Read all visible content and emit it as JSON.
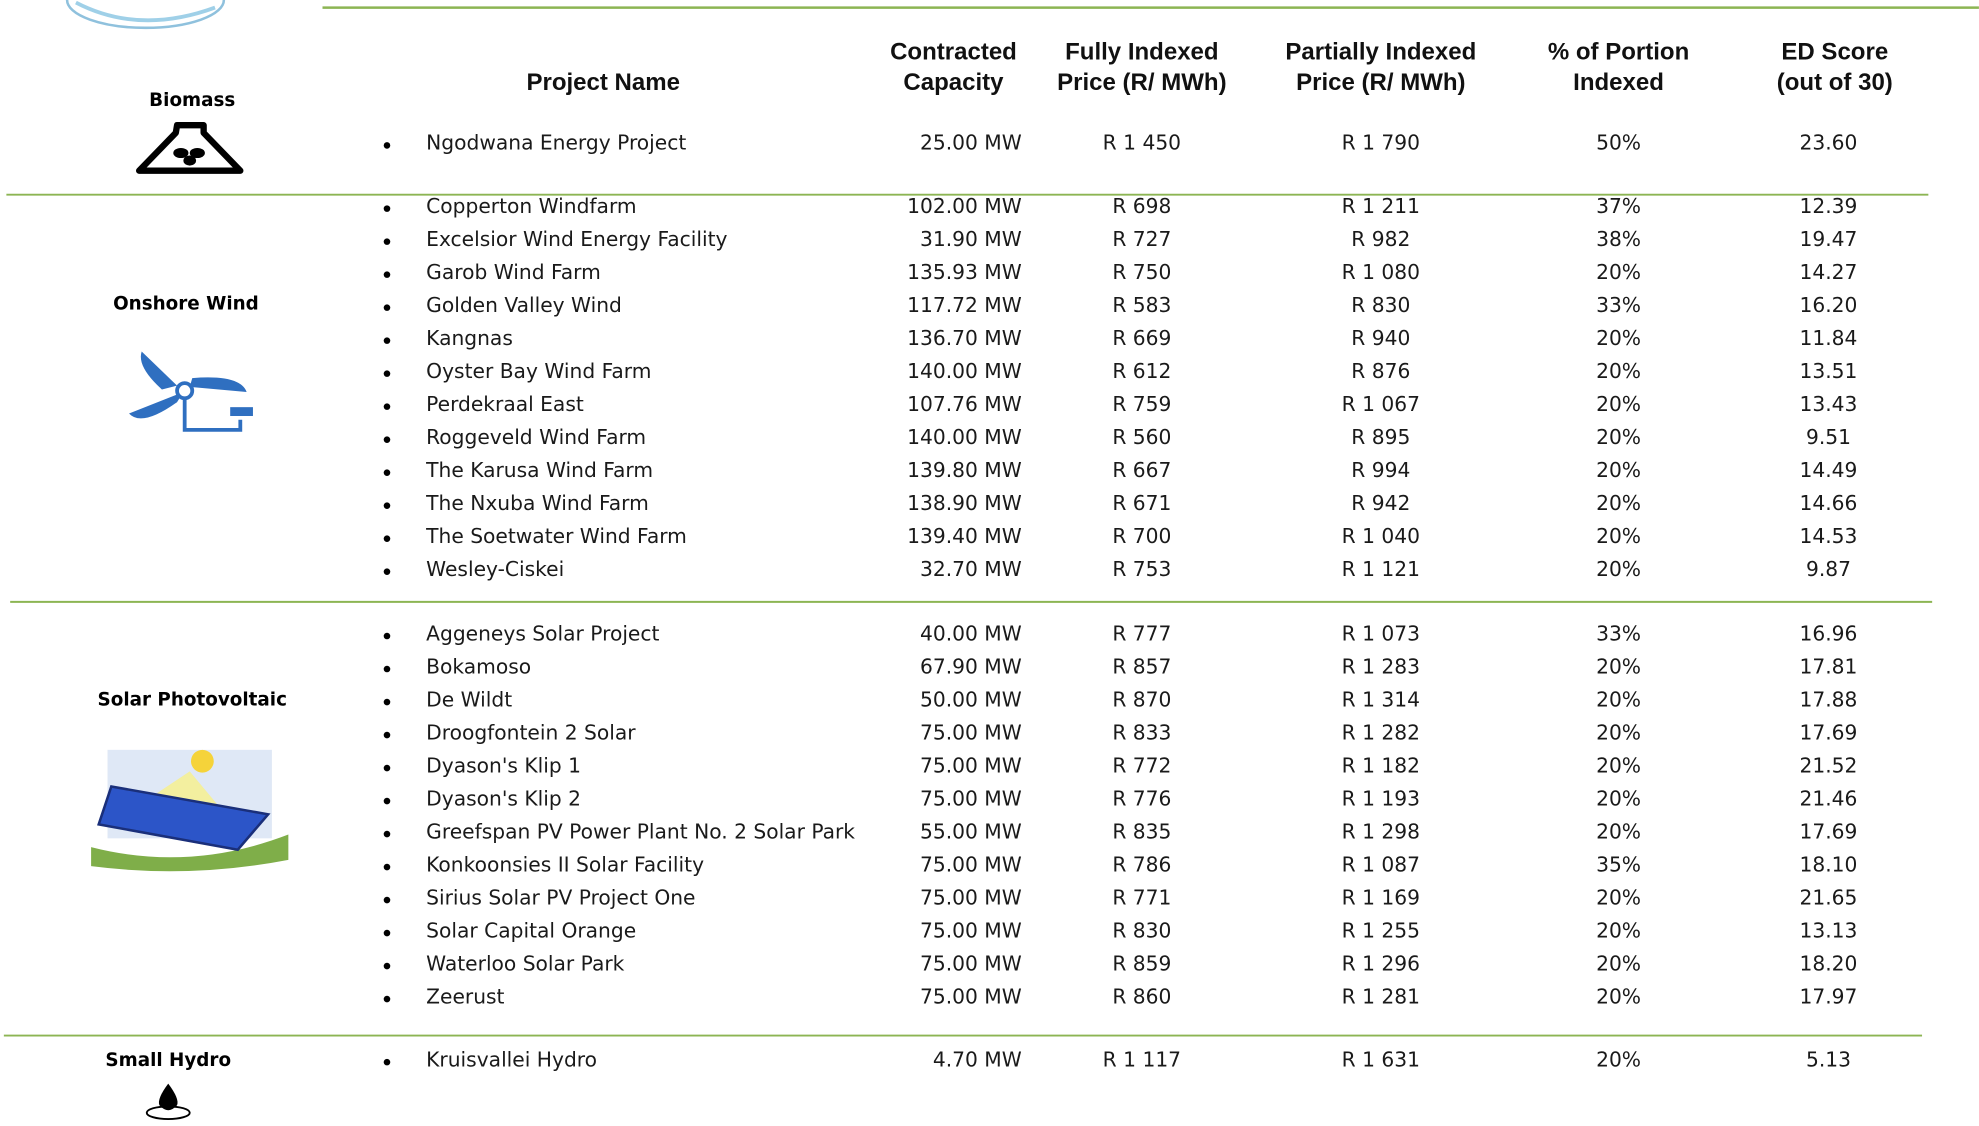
{
  "header": {
    "columns": [
      [
        "Project Name"
      ],
      [
        "Contracted",
        "Capacity"
      ],
      [
        "Fully Indexed",
        "Price (R/ MWh)"
      ],
      [
        "Partially Indexed",
        "Price (R/ MWh)"
      ],
      [
        "% of Portion",
        "Indexed"
      ],
      [
        "ED Score",
        "(out of 30)"
      ]
    ]
  },
  "groups": [
    {
      "label": "Biomass",
      "rows": [
        [
          "Ngodwana Energy Project",
          "25.00 MW",
          "R 1 450",
          "R 1 790",
          "50%",
          "23.60"
        ]
      ]
    },
    {
      "label": "Onshore Wind",
      "rows": [
        [
          "Copperton Windfarm",
          "102.00 MW",
          "R 698",
          "R 1 211",
          "37%",
          "12.39"
        ],
        [
          "Excelsior Wind Energy Facility",
          "31.90 MW",
          "R 727",
          "R 982",
          "38%",
          "19.47"
        ],
        [
          "Garob Wind Farm",
          "135.93 MW",
          "R 750",
          "R 1 080",
          "20%",
          "14.27"
        ],
        [
          "Golden Valley Wind",
          "117.72 MW",
          "R 583",
          "R 830",
          "33%",
          "16.20"
        ],
        [
          "Kangnas",
          "136.70 MW",
          "R 669",
          "R 940",
          "20%",
          "11.84"
        ],
        [
          "Oyster Bay Wind Farm",
          "140.00 MW",
          "R 612",
          "R 876",
          "20%",
          "13.51"
        ],
        [
          "Perdekraal East",
          "107.76 MW",
          "R 759",
          "R 1 067",
          "20%",
          "13.43"
        ],
        [
          "Roggeveld Wind Farm",
          "140.00 MW",
          "R 560",
          "R 895",
          "20%",
          "9.51"
        ],
        [
          "The Karusa Wind Farm",
          "139.80 MW",
          "R 667",
          "R 994",
          "20%",
          "14.49"
        ],
        [
          "The Nxuba Wind Farm",
          "138.90 MW",
          "R 671",
          "R 942",
          "20%",
          "14.66"
        ],
        [
          "The Soetwater Wind Farm",
          "139.40 MW",
          "R 700",
          "R 1 040",
          "20%",
          "14.53"
        ],
        [
          "Wesley-Ciskei",
          "32.70 MW",
          "R 753",
          "R 1 121",
          "20%",
          "9.87"
        ]
      ]
    },
    {
      "label": "Solar Photovoltaic",
      "rows": [
        [
          "Aggeneys Solar Project",
          "40.00 MW",
          "R 777",
          "R 1 073",
          "33%",
          "16.96"
        ],
        [
          "Bokamoso",
          "67.90 MW",
          "R 857",
          "R 1 283",
          "20%",
          "17.81"
        ],
        [
          "De Wildt",
          "50.00 MW",
          "R 870",
          "R 1 314",
          "20%",
          "17.88"
        ],
        [
          "Droogfontein 2 Solar",
          "75.00 MW",
          "R 833",
          "R 1 282",
          "20%",
          "17.69"
        ],
        [
          "Dyason's Klip 1",
          "75.00 MW",
          "R 772",
          "R 1 182",
          "20%",
          "21.52"
        ],
        [
          "Dyason's Klip 2",
          "75.00 MW",
          "R 776",
          "R 1 193",
          "20%",
          "21.46"
        ],
        [
          "Greefspan PV Power Plant No. 2 Solar Park",
          "55.00 MW",
          "R 835",
          "R 1 298",
          "20%",
          "17.69"
        ],
        [
          "Konkoonsies II Solar Facility",
          "75.00 MW",
          "R 786",
          "R 1 087",
          "35%",
          "18.10"
        ],
        [
          "Sirius Solar PV Project One",
          "75.00 MW",
          "R 771",
          "R 1 169",
          "20%",
          "21.65"
        ],
        [
          "Solar Capital Orange",
          "75.00 MW",
          "R 830",
          "R 1 255",
          "20%",
          "13.13"
        ],
        [
          "Waterloo Solar Park",
          "75.00 MW",
          "R 859",
          "R 1 296",
          "20%",
          "18.20"
        ],
        [
          "Zeerust",
          "75.00 MW",
          "R 860",
          "R 1 281",
          "20%",
          "17.97"
        ]
      ]
    },
    {
      "label": "Small Hydro",
      "rows": [
        [
          "Kruisvallei Hydro",
          "4.70 MW",
          "R 1 117",
          "R 1 631",
          "20%",
          "5.13"
        ]
      ]
    }
  ]
}
